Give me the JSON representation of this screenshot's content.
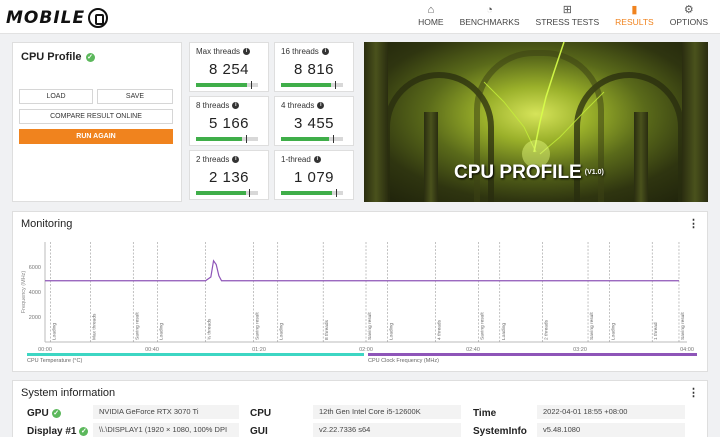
{
  "nav": {
    "items": [
      {
        "label": "HOME",
        "icon": "home-icon",
        "glyph": "⌂"
      },
      {
        "label": "BENCHMARKS",
        "icon": "stopwatch-icon",
        "glyph": "◔"
      },
      {
        "label": "STRESS TESTS",
        "icon": "stress-test-icon",
        "glyph": "⊞"
      },
      {
        "label": "RESULTS",
        "icon": "bar-chart-icon",
        "glyph": "▮"
      },
      {
        "label": "OPTIONS",
        "icon": "gear-icon",
        "glyph": "⚙"
      }
    ],
    "active": "RESULTS"
  },
  "logo": {
    "text": "MOBILE",
    "alt": "MOBILE01"
  },
  "profile": {
    "title": "CPU Profile",
    "load": "LOAD",
    "save": "SAVE",
    "compare": "COMPARE RESULT ONLINE",
    "run_again": "RUN AGAIN"
  },
  "scores": [
    {
      "label": "Max threads",
      "value": "8 254",
      "fill": 0.82,
      "marker": 0.88
    },
    {
      "label": "16 threads",
      "value": "8 816",
      "fill": 0.8,
      "marker": 0.87
    },
    {
      "label": "8 threads",
      "value": "5 166",
      "fill": 0.74,
      "marker": 0.8
    },
    {
      "label": "4 threads",
      "value": "3 455",
      "fill": 0.78,
      "marker": 0.84
    },
    {
      "label": "2 threads",
      "value": "2 136",
      "fill": 0.8,
      "marker": 0.86
    },
    {
      "label": "1-thread",
      "value": "1 079",
      "fill": 0.82,
      "marker": 0.88
    }
  ],
  "hero": {
    "title": "CPU PROFILE",
    "version": "(V1.0)"
  },
  "monitoring": {
    "title": "Monitoring",
    "menu": "⋮"
  },
  "chart_data": {
    "type": "line",
    "ylabel": "Frequency (MHz)",
    "ylim": [
      0,
      8000
    ],
    "yticks": [
      "2000",
      "4000",
      "6000"
    ],
    "xticks": [
      "00:00",
      "00:40",
      "01:20",
      "02:00",
      "02:40",
      "03:20",
      "04:00"
    ],
    "xlim": [
      0,
      240
    ],
    "series": [
      {
        "name": "CPU Clock Frequency (MHz)",
        "color": "#8e55b8",
        "x": [
          0,
          5,
          10,
          20,
          40,
          60,
          62,
          63,
          64,
          65,
          66,
          68,
          80,
          100,
          120,
          140,
          160,
          180,
          200,
          220,
          237
        ],
        "y": [
          4900,
          4900,
          4900,
          4900,
          4900,
          4900,
          5200,
          6500,
          6200,
          5300,
          4900,
          4900,
          4900,
          4900,
          4900,
          4900,
          4900,
          4900,
          4900,
          4900,
          4900
        ]
      }
    ],
    "markers": [
      {
        "t": 2,
        "label": "Loading"
      },
      {
        "t": 17,
        "label": "Max threads"
      },
      {
        "t": 33,
        "label": "Saving result"
      },
      {
        "t": 42,
        "label": "Loading"
      },
      {
        "t": 60,
        "label": "¾ threads"
      },
      {
        "t": 78,
        "label": "Saving result"
      },
      {
        "t": 87,
        "label": "Loading"
      },
      {
        "t": 104,
        "label": "8 threads"
      },
      {
        "t": 120,
        "label": "Saving result"
      },
      {
        "t": 128,
        "label": "Loading"
      },
      {
        "t": 146,
        "label": "4 threads"
      },
      {
        "t": 162,
        "label": "Saving result"
      },
      {
        "t": 170,
        "label": "Loading"
      },
      {
        "t": 186,
        "label": "2 threads"
      },
      {
        "t": 203,
        "label": "Saving result"
      },
      {
        "t": 211,
        "label": "Loading"
      },
      {
        "t": 227,
        "label": "1 thread"
      },
      {
        "t": 237,
        "label": "Saving result"
      }
    ],
    "legend": [
      {
        "name": "CPU Temperature (°C)",
        "color": "#3dd6c3"
      },
      {
        "name": "CPU Clock Frequency (MHz)",
        "color": "#8e55b8"
      }
    ]
  },
  "sysinfo": {
    "title": "System information",
    "rows": [
      {
        "key": "GPU",
        "check": true,
        "value": "NVIDIA GeForce RTX 3070 Ti"
      },
      {
        "key": "CPU",
        "check": false,
        "value": "12th Gen Intel Core i5-12600K"
      },
      {
        "key": "Time",
        "check": false,
        "value": "2022-04-01 18:55 +08:00"
      },
      {
        "key": "Display #1",
        "check": true,
        "value": "\\\\.\\DISPLAY1 (1920 × 1080, 100% DPI"
      },
      {
        "key": "GUI",
        "check": false,
        "value": "v2.22.7336 s64"
      },
      {
        "key": "SystemInfo",
        "check": false,
        "value": "v5.48.1080"
      }
    ]
  }
}
